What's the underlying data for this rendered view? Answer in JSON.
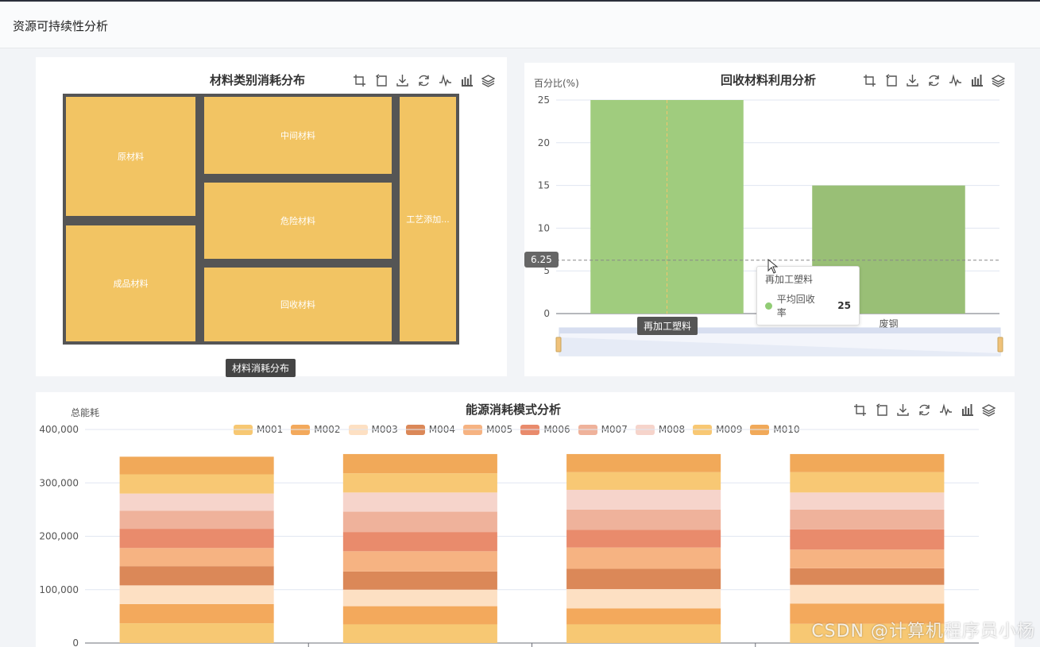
{
  "header": {
    "title": "资源可持续性分析"
  },
  "treemap": {
    "title": "材料类别消耗分布",
    "series_label": "材料消耗分布",
    "color": "#f2c463",
    "border": "#555555",
    "items": [
      {
        "name": "原材料"
      },
      {
        "name": "中间材料"
      },
      {
        "name": "工艺添加..."
      },
      {
        "name": "危险材料"
      },
      {
        "name": "成品材料"
      },
      {
        "name": "回收材料"
      }
    ]
  },
  "recycle": {
    "title": "回收材料利用分析",
    "y_axis_name": "百分比(%)",
    "ref_line_label": "6.25",
    "tooltip": {
      "title": "再加工塑料",
      "series": "平均回收率",
      "value": "25"
    },
    "active_category": "再加工塑料",
    "colors": {
      "bar1": "#a0cc7e",
      "bar2": "#99bf76"
    }
  },
  "energy": {
    "title": "能源消耗模式分析",
    "y_axis_name": "总能耗",
    "tick_labels": [
      "0",
      "100,000",
      "200,000",
      "300,000",
      "400,000"
    ]
  },
  "toolbox_icons": [
    "crop-icon",
    "undo-icon",
    "download-icon",
    "refresh-icon",
    "line-chart-icon",
    "bar-chart-icon",
    "stack-icon"
  ],
  "watermark": "CSDN @计算机程序员小杨",
  "chart_data": [
    {
      "type": "treemap",
      "title": "材料类别消耗分布",
      "series": [
        {
          "name": "材料消耗分布",
          "values": [
            {
              "name": "原材料",
              "value": 22
            },
            {
              "name": "成品材料",
              "value": 22
            },
            {
              "name": "中间材料",
              "value": 19
            },
            {
              "name": "危险材料",
              "value": 19
            },
            {
              "name": "回收材料",
              "value": 19
            },
            {
              "name": "工艺添加...",
              "value": 15
            }
          ]
        }
      ]
    },
    {
      "type": "bar",
      "title": "回收材料利用分析",
      "ylabel": "百分比(%)",
      "categories": [
        "再加工塑料",
        "废钢"
      ],
      "series": [
        {
          "name": "平均回收率",
          "values": [
            25,
            15
          ]
        }
      ],
      "ylim": [
        0,
        25
      ],
      "yticks": [
        0,
        5,
        10,
        15,
        20,
        25
      ],
      "markline": 6.25,
      "grid": true
    },
    {
      "type": "bar",
      "stacked": true,
      "title": "能源消耗模式分析",
      "ylabel": "总能耗",
      "ylim": [
        0,
        400000
      ],
      "yticks": [
        0,
        100000,
        200000,
        300000,
        400000
      ],
      "categories": [
        "",
        "",
        "",
        ""
      ],
      "legend_position": "top",
      "series": [
        {
          "name": "M001",
          "color": "#f7c873",
          "values": [
            37000,
            35000,
            35000,
            36000
          ]
        },
        {
          "name": "M002",
          "color": "#f3a95c",
          "values": [
            36000,
            34000,
            30000,
            38000
          ]
        },
        {
          "name": "M003",
          "color": "#fde0c3",
          "values": [
            35000,
            31000,
            36000,
            35000
          ]
        },
        {
          "name": "M004",
          "color": "#db8858",
          "values": [
            36000,
            34000,
            38000,
            31000
          ]
        },
        {
          "name": "M005",
          "color": "#f6b382",
          "values": [
            34000,
            38000,
            40000,
            35000
          ]
        },
        {
          "name": "M006",
          "color": "#e98b6c",
          "values": [
            36000,
            36000,
            33000,
            38000
          ]
        },
        {
          "name": "M007",
          "color": "#efb29b",
          "values": [
            34000,
            38000,
            38000,
            37000
          ]
        },
        {
          "name": "M008",
          "color": "#f6d4cb",
          "values": [
            32000,
            36000,
            37000,
            32000
          ]
        },
        {
          "name": "M009",
          "color": "#f8c874",
          "values": [
            36000,
            36000,
            33000,
            38000
          ]
        },
        {
          "name": "M010",
          "color": "#f1a959",
          "values": [
            33000,
            36000,
            34000,
            34000
          ]
        }
      ]
    }
  ]
}
